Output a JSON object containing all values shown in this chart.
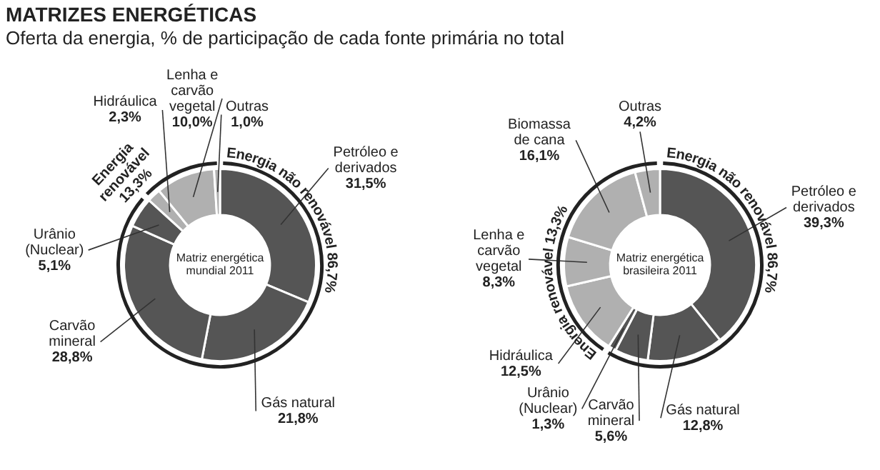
{
  "chart_data": [
    {
      "type": "donut",
      "title": "MATRIZES ENERGÉTICAS",
      "subtitle": "Oferta da energia, % de participação de cada fonte primária no total",
      "categories": [
        "Petróleo e derivados",
        "Gás natural",
        "Carvão mineral",
        "Urânio (Nuclear)",
        "Hidráulica",
        "Lenha e carvão vegetal",
        "Outras"
      ],
      "values": [
        31.5,
        21.8,
        28.8,
        5.1,
        2.3,
        10.0,
        1.0
      ],
      "value_labels": [
        "31,5%",
        "21,8%",
        "28,8%",
        "5,1%",
        "2,3%",
        "10,0%",
        "1,0%"
      ],
      "colors": [
        "#555555",
        "#555555",
        "#555555",
        "#555555",
        "#b0b0b0",
        "#b0b0b0",
        "#b0b0b0"
      ],
      "annotations": [
        "Matriz energética mundial 2011",
        "Energia não renovável 86,7%",
        "Energia renovável 13,3%"
      ]
    },
    {
      "type": "donut",
      "categories": [
        "Petróleo e derivados",
        "Gás natural",
        "Carvão mineral",
        "Urânio (Nuclear)",
        "Hidráulica",
        "Lenha e carvão vegetal",
        "Biomassa de cana",
        "Outras"
      ],
      "values": [
        39.3,
        12.8,
        5.6,
        1.3,
        12.5,
        8.3,
        16.1,
        4.2
      ],
      "value_labels": [
        "39,3%",
        "12,8%",
        "5,6%",
        "1,3%",
        "12,5%",
        "8,3%",
        "16,1%",
        "4,2%"
      ],
      "colors": [
        "#555555",
        "#555555",
        "#555555",
        "#555555",
        "#b0b0b0",
        "#b0b0b0",
        "#b0b0b0",
        "#b0b0b0"
      ],
      "annotations": [
        "Matriz energética brasileira 2011",
        "Energia não renovável 86,7%",
        "Energia renovável 13,3%"
      ]
    }
  ]
}
